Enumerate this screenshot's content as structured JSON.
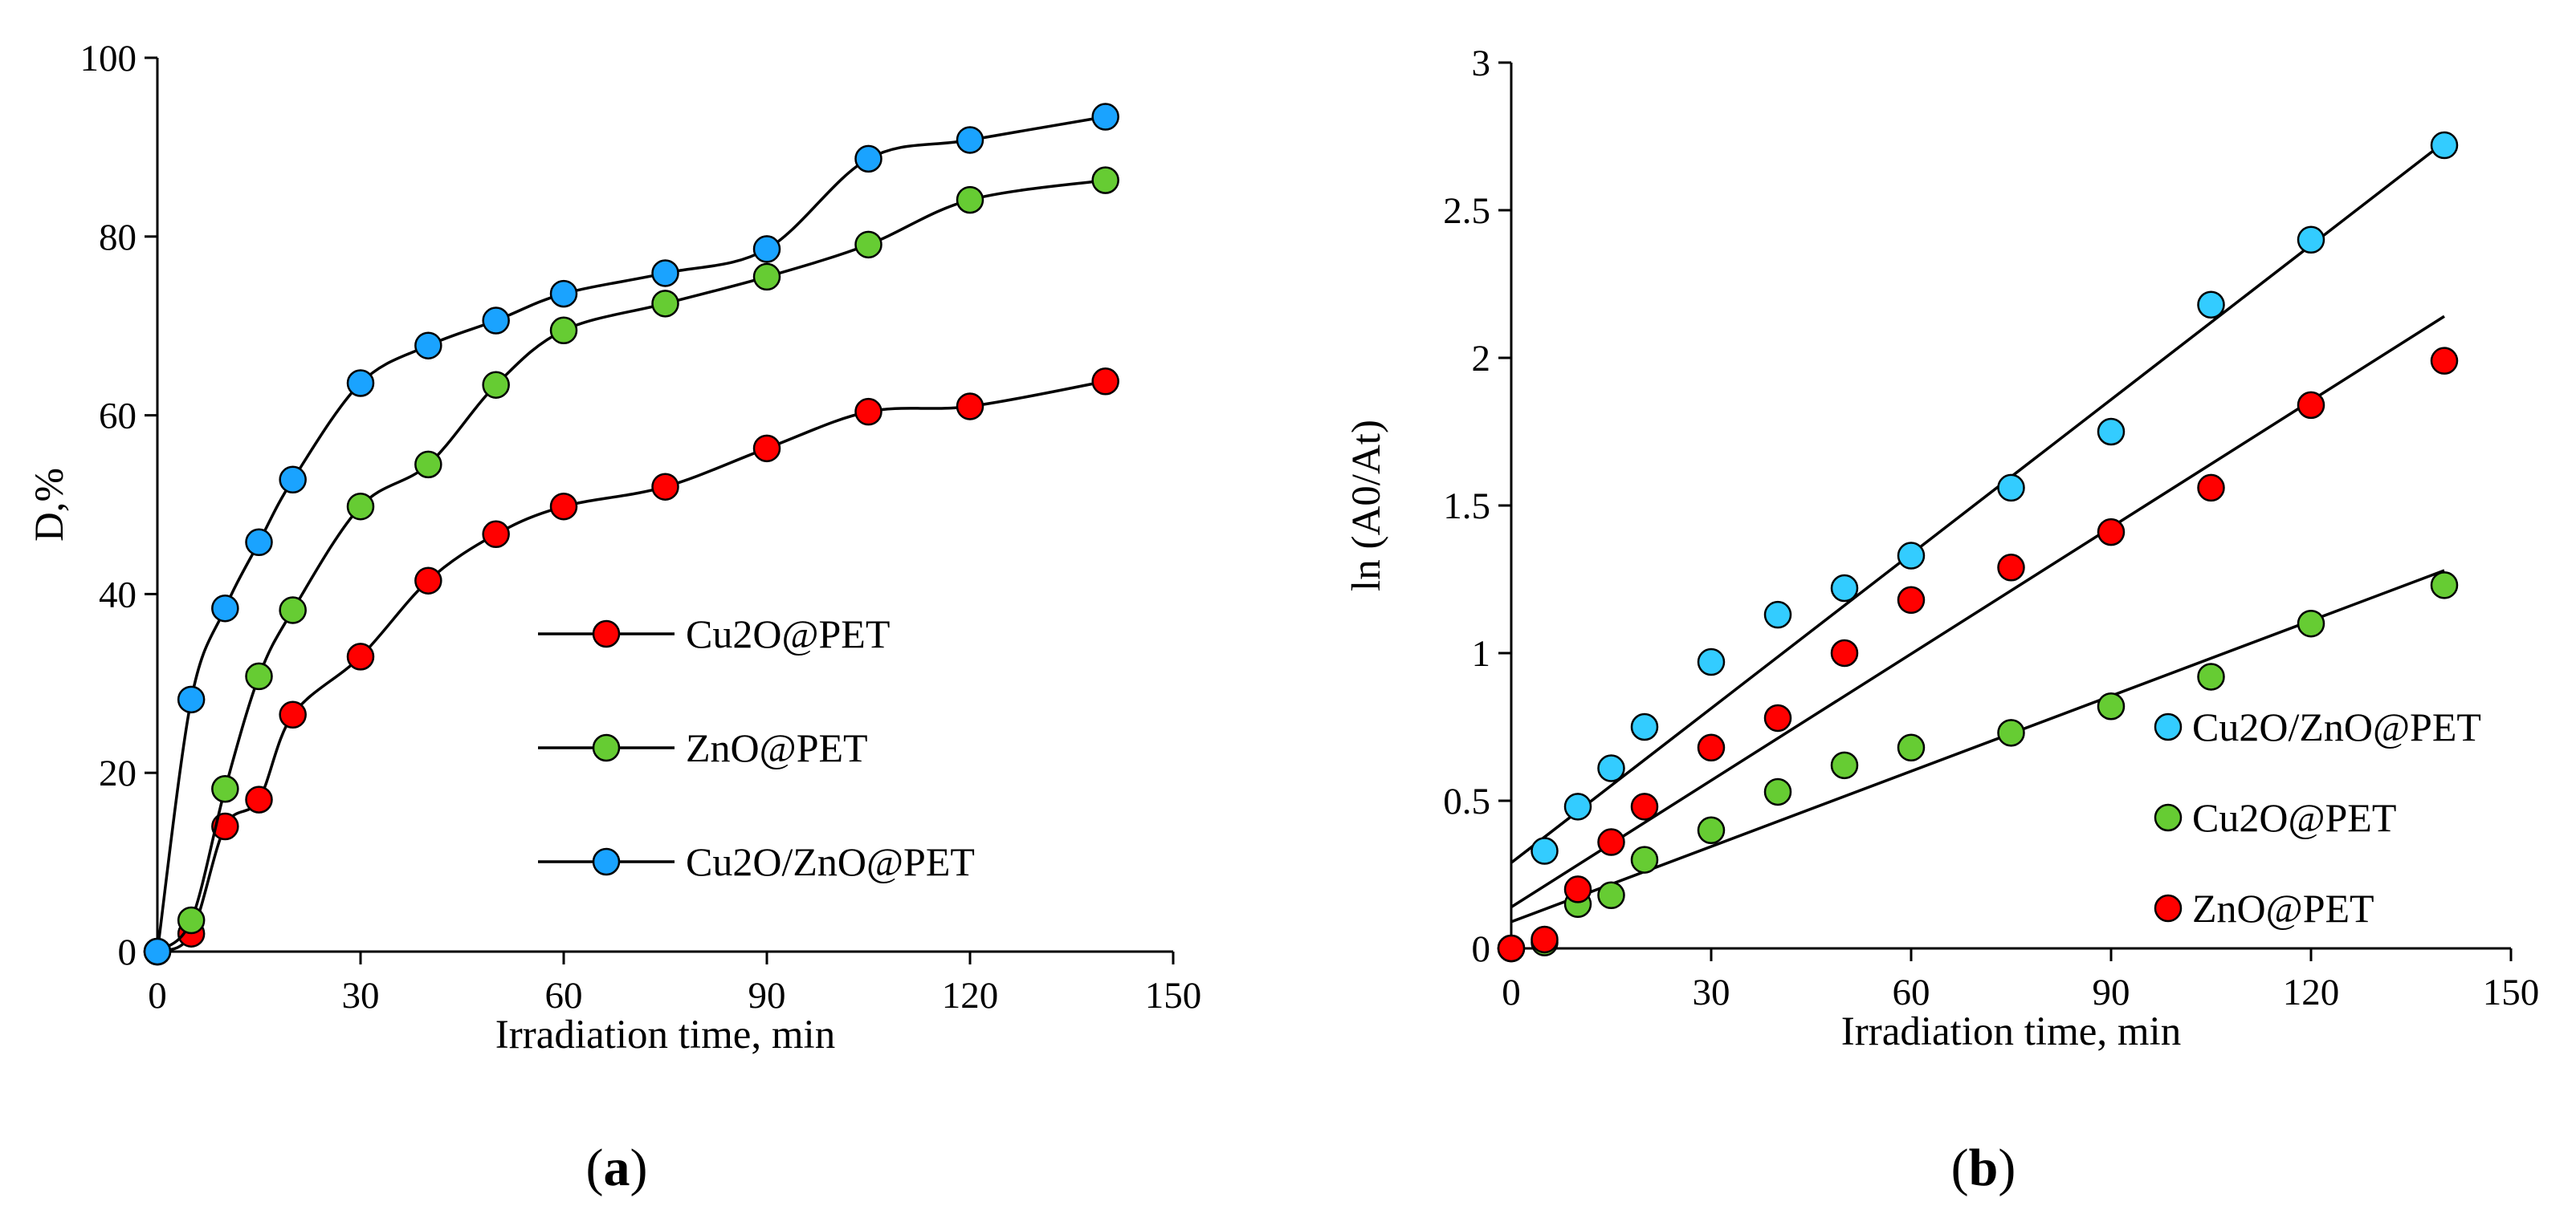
{
  "chart_data": [
    {
      "panel_label": "a",
      "type": "line",
      "title": "",
      "xlabel": "Irradiation time, min",
      "ylabel": "D,%",
      "xlim": [
        0,
        150
      ],
      "ylim": [
        0,
        100
      ],
      "xticks": [
        0,
        30,
        60,
        90,
        120,
        150
      ],
      "yticks": [
        0,
        20,
        40,
        60,
        80,
        100
      ],
      "x": [
        0,
        5,
        10,
        15,
        20,
        30,
        40,
        50,
        60,
        75,
        90,
        105,
        120,
        140
      ],
      "legend_position": "center-right",
      "series": [
        {
          "name": "Cu2O@PET",
          "color": "#ff0000",
          "values": [
            0,
            2,
            14,
            17,
            26.5,
            33,
            41.5,
            46.7,
            49.8,
            52,
            56.3,
            60.4,
            61,
            63.8
          ]
        },
        {
          "name": "ZnO@PET",
          "color": "#66cc33",
          "values": [
            0,
            3.5,
            18.2,
            30.8,
            38.2,
            49.8,
            54.5,
            63.4,
            69.5,
            72.5,
            75.5,
            79.1,
            84.1,
            86.3
          ]
        },
        {
          "name": "Cu2O/ZnO@PET",
          "color": "#1aa3ff",
          "values": [
            0,
            28.2,
            38.4,
            45.8,
            52.8,
            63.6,
            67.8,
            70.6,
            73.6,
            75.9,
            78.6,
            88.7,
            90.8,
            93.4
          ]
        }
      ]
    },
    {
      "panel_label": "b",
      "type": "scatter",
      "title": "",
      "xlabel": "Irradiation time, min",
      "ylabel": "ln (A0/At)",
      "xlim": [
        0,
        150
      ],
      "ylim": [
        0,
        3
      ],
      "xticks": [
        0,
        30,
        60,
        90,
        120,
        150
      ],
      "yticks": [
        "0",
        "0.5",
        "1",
        "1.5",
        "2",
        "2.5",
        "3"
      ],
      "x": [
        0,
        5,
        10,
        15,
        20,
        30,
        40,
        50,
        60,
        75,
        90,
        105,
        120,
        140
      ],
      "legend_position": "center-right",
      "series": [
        {
          "name": "Cu2O/ZnO@PET",
          "color": "#33ccff",
          "values": [
            0,
            0.33,
            0.48,
            0.61,
            0.75,
            0.97,
            1.13,
            1.22,
            1.33,
            1.56,
            1.75,
            2.18,
            2.4,
            2.72
          ],
          "trendline": {
            "intercept": 0.29,
            "slope": 0.01743
          }
        },
        {
          "name": "Cu2O@PET",
          "color": "#66cc33",
          "values": [
            0,
            0.02,
            0.15,
            0.18,
            0.3,
            0.4,
            0.53,
            0.62,
            0.68,
            0.73,
            0.82,
            0.92,
            1.1,
            1.23
          ],
          "trendline": {
            "intercept": 0.09,
            "slope": 0.0085
          }
        },
        {
          "name": "ZnO@PET",
          "color": "#ff0000",
          "values": [
            0,
            0.03,
            0.2,
            0.36,
            0.48,
            0.68,
            0.78,
            1.0,
            1.18,
            1.29,
            1.41,
            1.56,
            1.84,
            1.99
          ],
          "trendline": {
            "intercept": 0.14,
            "slope": 0.01429
          }
        }
      ]
    }
  ]
}
